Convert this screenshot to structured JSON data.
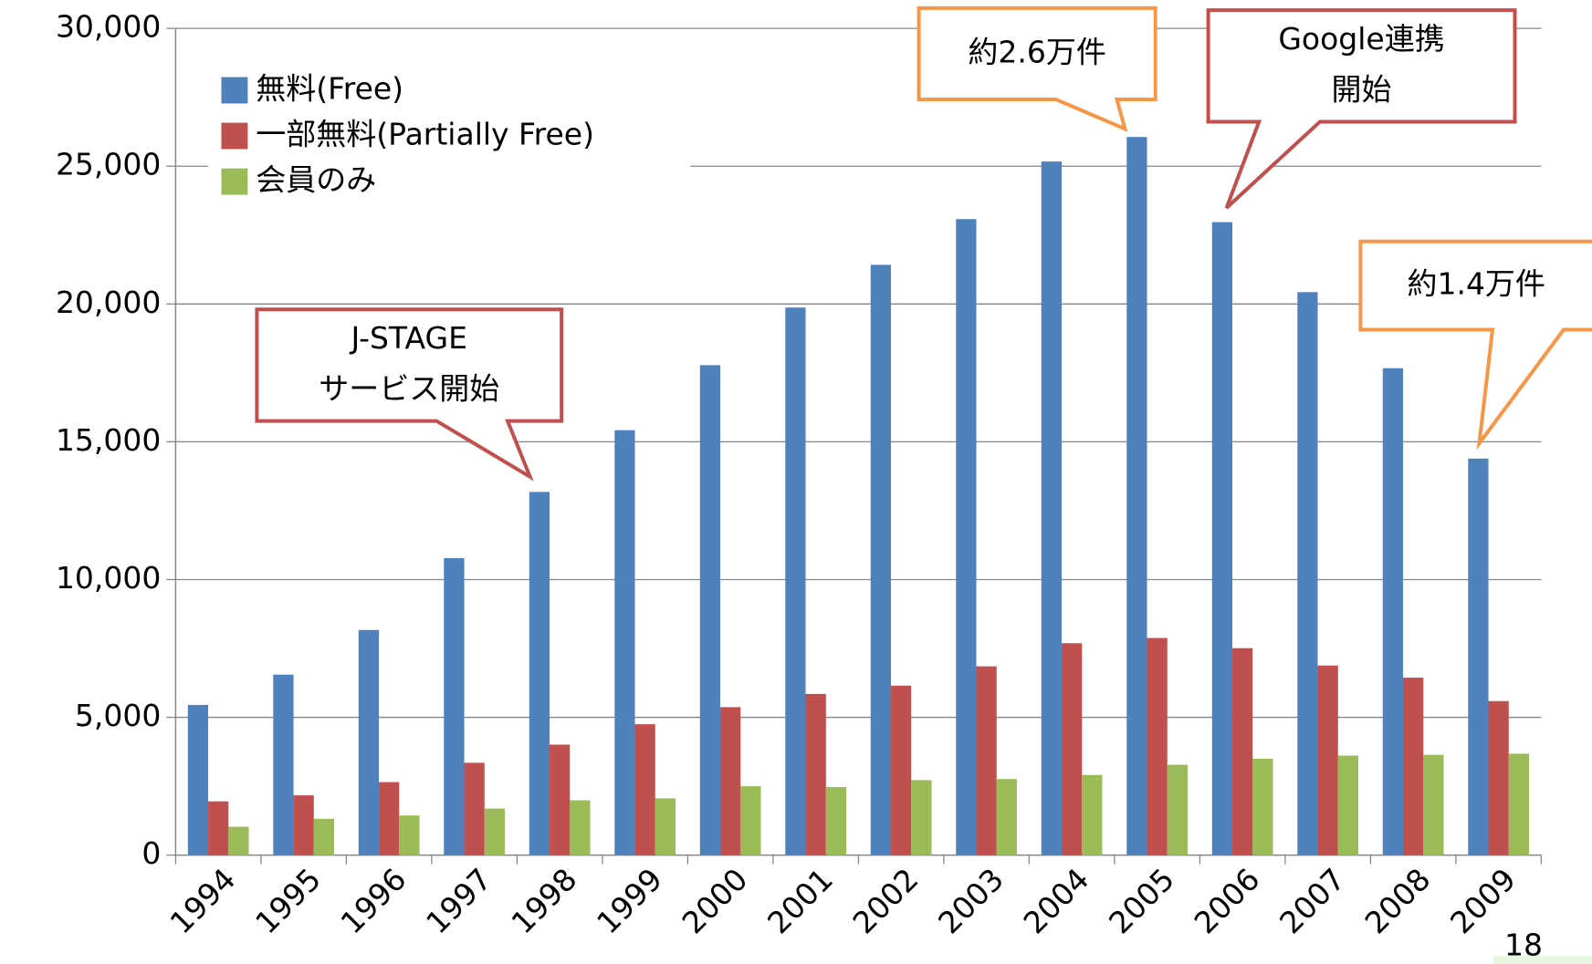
{
  "chart_data": {
    "type": "bar",
    "categories": [
      "1994",
      "1995",
      "1996",
      "1997",
      "1998",
      "1999",
      "2000",
      "2001",
      "2002",
      "2003",
      "2004",
      "2005",
      "2006",
      "2007",
      "2008",
      "2009"
    ],
    "series": [
      {
        "name": "無料(Free)",
        "color": "#4f81bd",
        "values": [
          5450,
          6550,
          8170,
          10780,
          13180,
          15420,
          17780,
          19870,
          21420,
          23080,
          25170,
          26060,
          22970,
          20430,
          17670,
          14390
        ]
      },
      {
        "name": "一部無料(Partially Free)",
        "color": "#c0504d",
        "values": [
          1950,
          2170,
          2650,
          3350,
          4010,
          4750,
          5370,
          5850,
          6150,
          6850,
          7690,
          7880,
          7510,
          6880,
          6440,
          5590
        ]
      },
      {
        "name": "会員のみ",
        "color": "#9bbb59",
        "values": [
          1030,
          1320,
          1440,
          1690,
          1990,
          2060,
          2500,
          2470,
          2720,
          2760,
          2910,
          3280,
          3500,
          3610,
          3640,
          3680
        ]
      }
    ],
    "ylim": [
      0,
      30000
    ],
    "yticks": [
      0,
      {
        "value": 5000,
        "label": "5,000"
      },
      {
        "value": 10000,
        "label": "10,000"
      },
      {
        "value": 15000,
        "label": "15,000"
      },
      {
        "value": 20000,
        "label": "20,000"
      },
      {
        "value": 25000,
        "label": "25,000"
      },
      {
        "value": 30000,
        "label": "30,000"
      }
    ],
    "grid": true,
    "legend": "upper left",
    "annotations": [
      {
        "lines": [
          "J-STAGE",
          "サービス開始"
        ],
        "color": "#c0504d"
      },
      {
        "lines": [
          "約2.6万件"
        ],
        "color": "#f79646"
      },
      {
        "lines": [
          "Google連携",
          "開始"
        ],
        "color": "#c0504d"
      },
      {
        "lines": [
          "約1.4万件"
        ],
        "color": "#f79646"
      }
    ],
    "page_number": "18"
  }
}
